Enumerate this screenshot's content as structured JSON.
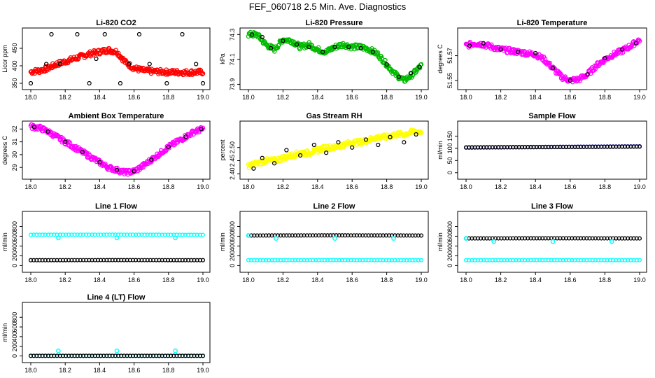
{
  "title": "FEF_060718  2.5 Min. Ave. Diagnostics",
  "chart_data": [
    {
      "type": "scatter",
      "title": "Li-820 CO2",
      "ylabel": "Licor ppm",
      "xlim": [
        18.0,
        19.0
      ],
      "ylim": [
        340,
        500
      ],
      "xticks": [
        "18.0",
        "18.2",
        "18.4",
        "18.6",
        "18.8",
        "19.0"
      ],
      "yticks": [
        "350",
        "400",
        "450"
      ],
      "series": [
        {
          "color": "#ff0000",
          "shape": "Y",
          "x": [
            18.0,
            18.05,
            18.1,
            18.15,
            18.2,
            18.25,
            18.3,
            18.35,
            18.4,
            18.45,
            18.5,
            18.55,
            18.6,
            18.65,
            18.7,
            18.8,
            18.9,
            19.0
          ],
          "y": [
            383,
            386,
            393,
            405,
            412,
            420,
            428,
            435,
            440,
            445,
            440,
            410,
            393,
            387,
            384,
            382,
            381,
            382
          ]
        },
        {
          "color": "#000000",
          "shape": "B",
          "x": [
            18.0,
            18.09,
            18.12,
            18.17,
            18.27,
            18.34,
            18.38,
            18.43,
            18.52,
            18.57,
            18.63,
            18.69,
            18.79,
            18.88,
            18.96,
            19.0
          ],
          "y": [
            350,
            405,
            490,
            405,
            490,
            350,
            420,
            490,
            350,
            405,
            490,
            405,
            350,
            490,
            405,
            350
          ]
        }
      ]
    },
    {
      "type": "scatter",
      "title": "Li-820 Pressure",
      "ylabel": "kPa",
      "xlim": [
        18.0,
        19.0
      ],
      "ylim": [
        73.88,
        74.33
      ],
      "xticks": [
        "18.0",
        "18.2",
        "18.4",
        "18.6",
        "18.8",
        "19.0"
      ],
      "yticks": [
        "73.9",
        "74.1",
        "74.3"
      ],
      "series": [
        {
          "color": "#00bb00",
          "shape": "Y",
          "x": [
            18.0,
            18.05,
            18.1,
            18.15,
            18.2,
            18.25,
            18.3,
            18.35,
            18.4,
            18.45,
            18.5,
            18.55,
            18.6,
            18.65,
            18.7,
            18.75,
            18.8,
            18.85,
            18.9,
            18.95,
            19.0
          ],
          "y": [
            74.3,
            74.3,
            74.22,
            74.18,
            74.26,
            74.25,
            74.2,
            74.22,
            74.18,
            74.16,
            74.2,
            74.22,
            74.2,
            74.2,
            74.18,
            74.14,
            74.06,
            73.98,
            73.93,
            73.98,
            74.05
          ]
        },
        {
          "color": "#000000",
          "shape": "B",
          "x": [
            18.02,
            18.08,
            18.13,
            18.2,
            18.28,
            18.35,
            18.43,
            18.5,
            18.58,
            18.65,
            18.72,
            18.8,
            18.87,
            18.94,
            18.99
          ],
          "y": [
            74.3,
            74.28,
            74.19,
            74.25,
            74.22,
            74.2,
            74.16,
            74.2,
            74.2,
            74.19,
            74.16,
            74.06,
            73.96,
            73.99,
            74.04
          ]
        }
      ]
    },
    {
      "type": "scatter",
      "title": "Li-820 Temperature",
      "ylabel": "degrees C",
      "xlim": [
        18.0,
        19.0
      ],
      "ylim": [
        51.545,
        51.59
      ],
      "xticks": [
        "18.0",
        "18.2",
        "18.4",
        "18.6",
        "18.8",
        "19.0"
      ],
      "yticks": [
        "51.55",
        "51.57"
      ],
      "series": [
        {
          "color": "#ff00ff",
          "shape": "Y",
          "x": [
            18.0,
            18.05,
            18.1,
            18.15,
            18.2,
            18.25,
            18.3,
            18.35,
            18.4,
            18.45,
            18.5,
            18.55,
            18.6,
            18.65,
            18.7,
            18.75,
            18.8,
            18.85,
            18.9,
            18.95,
            19.0
          ],
          "y": [
            51.578,
            51.58,
            51.579,
            51.577,
            51.575,
            51.574,
            51.573,
            51.572,
            51.571,
            51.567,
            51.56,
            51.553,
            51.55,
            51.551,
            51.555,
            51.562,
            51.567,
            51.571,
            51.574,
            51.578,
            51.583
          ]
        },
        {
          "color": "#000000",
          "shape": "B",
          "x": [
            18.02,
            18.1,
            18.2,
            18.3,
            18.4,
            18.5,
            18.6,
            18.7,
            18.8,
            18.9,
            18.98
          ],
          "y": [
            51.578,
            51.58,
            51.575,
            51.573,
            51.572,
            51.56,
            51.55,
            51.555,
            51.568,
            51.575,
            51.58
          ]
        }
      ]
    },
    {
      "type": "scatter",
      "title": "Ambient Box Temperature",
      "ylabel": "degrees C",
      "xlim": [
        18.0,
        19.0
      ],
      "ylim": [
        28.3,
        32.4
      ],
      "xticks": [
        "18.0",
        "18.2",
        "18.4",
        "18.6",
        "18.8",
        "19.0"
      ],
      "yticks": [
        "29",
        "30",
        "31",
        "32"
      ],
      "series": [
        {
          "color": "#ff00ff",
          "shape": "Y",
          "x": [
            18.0,
            18.05,
            18.1,
            18.15,
            18.2,
            18.25,
            18.3,
            18.35,
            18.4,
            18.45,
            18.5,
            18.55,
            18.6,
            18.65,
            18.7,
            18.75,
            18.8,
            18.85,
            18.9,
            18.95,
            19.0
          ],
          "y": [
            32.2,
            32.1,
            31.8,
            31.4,
            31.0,
            30.6,
            30.2,
            29.8,
            29.4,
            29.0,
            28.8,
            28.6,
            28.7,
            29.1,
            29.6,
            30.1,
            30.6,
            31.0,
            31.4,
            31.8,
            32.0
          ]
        },
        {
          "color": "#000000",
          "shape": "B",
          "x": [
            18.02,
            18.1,
            18.2,
            18.3,
            18.4,
            18.5,
            18.6,
            18.7,
            18.8,
            18.9,
            18.99
          ],
          "y": [
            32.15,
            31.8,
            31.0,
            30.2,
            29.4,
            28.8,
            28.7,
            29.6,
            30.6,
            31.4,
            32.0
          ]
        }
      ]
    },
    {
      "type": "scatter",
      "title": "Gas Stream RH",
      "ylabel": "percent",
      "xlim": [
        18.0,
        19.0
      ],
      "ylim": [
        2.39,
        2.59
      ],
      "xticks": [
        "18.0",
        "18.2",
        "18.4",
        "18.6",
        "18.8",
        "19.0"
      ],
      "yticks": [
        "2.40",
        "2.45",
        "2.50"
      ],
      "series": [
        {
          "color": "#ffff00",
          "shape": "Y",
          "x": [
            18.0,
            18.05,
            18.1,
            18.15,
            18.2,
            18.25,
            18.3,
            18.35,
            18.4,
            18.45,
            18.5,
            18.55,
            18.6,
            18.65,
            18.7,
            18.75,
            18.8,
            18.85,
            18.9,
            18.95,
            19.0
          ],
          "y": [
            2.43,
            2.44,
            2.45,
            2.45,
            2.46,
            2.47,
            2.48,
            2.48,
            2.49,
            2.5,
            2.5,
            2.51,
            2.52,
            2.52,
            2.53,
            2.54,
            2.54,
            2.55,
            2.55,
            2.56,
            2.56
          ]
        },
        {
          "color": "#000000",
          "shape": "B",
          "x": [
            18.03,
            18.08,
            18.15,
            18.22,
            18.3,
            18.38,
            18.45,
            18.52,
            18.6,
            18.68,
            18.75,
            18.82,
            18.9,
            18.97
          ],
          "y": [
            2.42,
            2.46,
            2.44,
            2.49,
            2.47,
            2.51,
            2.48,
            2.52,
            2.5,
            2.53,
            2.51,
            2.54,
            2.52,
            2.55
          ]
        }
      ]
    },
    {
      "type": "scatter",
      "title": "Sample Flow",
      "ylabel": "ml/min",
      "xlim": [
        18.0,
        19.0
      ],
      "ylim": [
        -15,
        200
      ],
      "xticks": [
        "18.0",
        "18.2",
        "18.4",
        "18.6",
        "18.8",
        "19.0"
      ],
      "yticks": [
        "0",
        "50",
        "100",
        "150"
      ],
      "series": [
        {
          "color": "#0000aa",
          "shape": "L",
          "x": [
            18.0,
            18.5,
            19.0
          ],
          "y": [
            104,
            106,
            108
          ]
        },
        {
          "color": "#000000",
          "shape": "L",
          "x": [
            18.0,
            18.5,
            19.0
          ],
          "y": [
            103,
            105,
            107
          ]
        }
      ]
    },
    {
      "type": "scatter",
      "title": "Line 1 Flow",
      "ylabel": "ml/min",
      "xlim": [
        18.0,
        19.0
      ],
      "ylim": [
        -80,
        1050
      ],
      "xticks": [
        "18.0",
        "18.2",
        "18.4",
        "18.6",
        "18.8",
        "19.0"
      ],
      "yticks": [
        "0",
        "200",
        "400",
        "600",
        "800"
      ],
      "series": [
        {
          "color": "#00ffff",
          "shape": "L",
          "x": [
            18.0,
            18.5,
            19.0
          ],
          "y": [
            630,
            632,
            628
          ]
        },
        {
          "color": "#000000",
          "shape": "L",
          "x": [
            18.0,
            18.5,
            19.0
          ],
          "y": [
            110,
            112,
            110
          ]
        },
        {
          "color": "#00ffff",
          "shape": "P",
          "x": [
            18.16,
            18.5,
            18.84
          ],
          "y": [
            565,
            565,
            565
          ]
        }
      ]
    },
    {
      "type": "scatter",
      "title": "Line 2 Flow",
      "ylabel": "ml/min",
      "xlim": [
        18.0,
        19.0
      ],
      "ylim": [
        -80,
        1050
      ],
      "xticks": [
        "18.0",
        "18.2",
        "18.4",
        "18.6",
        "18.8",
        "19.0"
      ],
      "yticks": [
        "0",
        "200",
        "400",
        "600",
        "800"
      ],
      "series": [
        {
          "color": "#00ffff",
          "shape": "L",
          "x": [
            18.0,
            18.5,
            19.0
          ],
          "y": [
            110,
            112,
            110
          ]
        },
        {
          "color": "#000000",
          "shape": "L",
          "x": [
            18.0,
            18.5,
            19.0
          ],
          "y": [
            615,
            618,
            615
          ]
        },
        {
          "color": "#00ffff",
          "shape": "P",
          "x": [
            18.0,
            18.16,
            18.5,
            18.84
          ],
          "y": [
            615,
            555,
            555,
            555
          ]
        }
      ]
    },
    {
      "type": "scatter",
      "title": "Line 3 Flow",
      "ylabel": "ml/min",
      "xlim": [
        18.0,
        19.0
      ],
      "ylim": [
        -80,
        1050
      ],
      "xticks": [
        "18.0",
        "18.2",
        "18.4",
        "18.6",
        "18.8",
        "19.0"
      ],
      "yticks": [
        "0",
        "200",
        "400",
        "600",
        "800"
      ],
      "series": [
        {
          "color": "#00ffff",
          "shape": "L",
          "x": [
            18.0,
            18.5,
            19.0
          ],
          "y": [
            110,
            112,
            110
          ]
        },
        {
          "color": "#000000",
          "shape": "L",
          "x": [
            18.0,
            18.5,
            19.0
          ],
          "y": [
            555,
            558,
            555
          ]
        },
        {
          "color": "#00ffff",
          "shape": "P",
          "x": [
            18.0,
            18.16,
            18.5,
            18.84
          ],
          "y": [
            555,
            490,
            490,
            490
          ]
        }
      ]
    },
    {
      "type": "scatter",
      "title": "Line 4 (LT) Flow",
      "ylabel": "ml/min",
      "xlim": [
        18.0,
        19.0
      ],
      "ylim": [
        -80,
        1050
      ],
      "xticks": [
        "18.0",
        "18.2",
        "18.4",
        "18.6",
        "18.8",
        "19.0"
      ],
      "yticks": [
        "0",
        "200",
        "400",
        "600",
        "800"
      ],
      "series": [
        {
          "color": "#00ffff",
          "shape": "L",
          "x": [
            18.0,
            18.5,
            19.0
          ],
          "y": [
            2,
            3,
            2
          ]
        },
        {
          "color": "#000000",
          "shape": "L",
          "x": [
            18.0,
            18.5,
            19.0
          ],
          "y": [
            2,
            2,
            2
          ]
        },
        {
          "color": "#00ffff",
          "shape": "P",
          "x": [
            18.16,
            18.5,
            18.84
          ],
          "y": [
            105,
            105,
            105
          ]
        }
      ]
    }
  ]
}
